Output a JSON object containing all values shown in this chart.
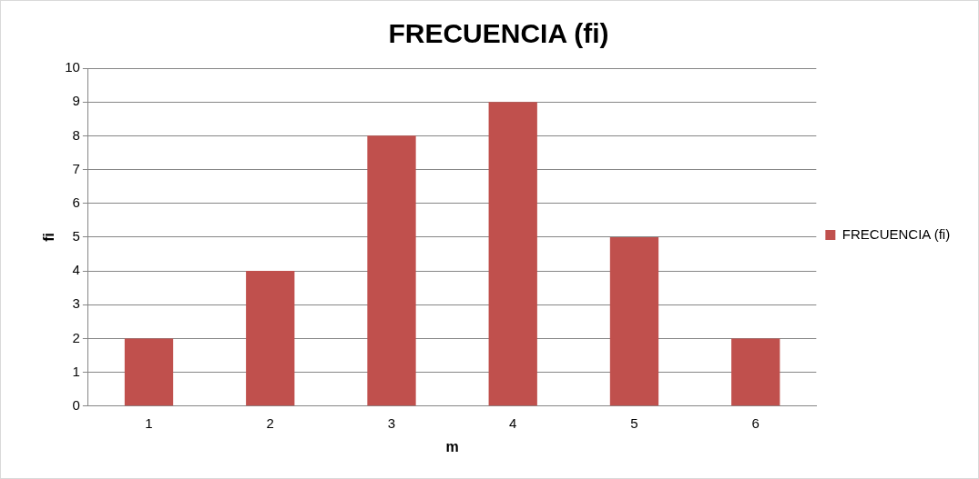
{
  "chart_data": {
    "type": "bar",
    "title": "FRECUENCIA (fi)",
    "xlabel": "m",
    "ylabel": "fi",
    "categories": [
      "1",
      "2",
      "3",
      "4",
      "5",
      "6"
    ],
    "series": [
      {
        "name": "FRECUENCIA (fi)",
        "color": "#c0504d",
        "values": [
          2,
          4,
          8,
          9,
          5,
          2
        ]
      }
    ],
    "ylim": [
      0,
      10
    ],
    "yticks": [
      0,
      1,
      2,
      3,
      4,
      5,
      6,
      7,
      8,
      9,
      10
    ],
    "grid": "y",
    "legend": "right"
  }
}
